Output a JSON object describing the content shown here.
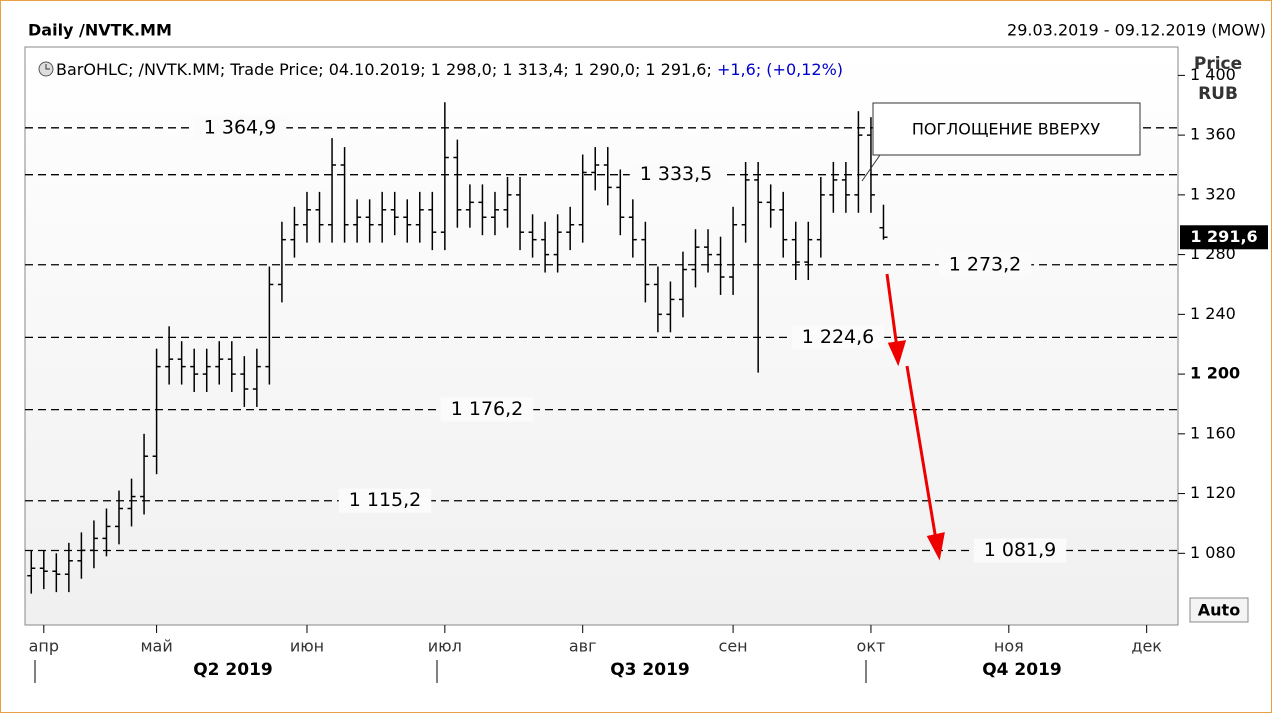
{
  "chart_data": {
    "type": "ohlc",
    "title": "Daily /NVTK.MM",
    "date_range": "29.03.2019 - 09.12.2019 (MOW)",
    "legend_text": "BarOHLC; /NVTK.MM; Trade Price; 04.10.2019; 1 298,0; 1 313,4; 1 290,0; 1 291,6;",
    "legend_change": "+1,6; (+0,12%)",
    "axis_title": [
      "Price",
      "RUB"
    ],
    "auto_button": "Auto",
    "annotation": "ПОГЛОЩЕНИЕ ВВЕРХУ",
    "last_value_label": "1 291,6",
    "color": "#000000",
    "categories": [
      null,
      "апр",
      null,
      null,
      null,
      null,
      null,
      null,
      null,
      null,
      "май",
      null,
      null,
      null,
      null,
      null,
      null,
      null,
      null,
      null,
      null,
      null,
      "июн",
      null,
      null,
      null,
      null,
      null,
      null,
      null,
      null,
      null,
      null,
      "июл",
      null,
      null,
      null,
      null,
      null,
      null,
      null,
      null,
      null,
      null,
      "авг",
      null,
      null,
      null,
      null,
      null,
      null,
      null,
      null,
      null,
      null,
      null,
      "сен",
      null,
      null,
      null,
      null,
      null,
      null,
      null,
      null,
      null,
      null,
      "окт",
      null,
      null,
      null,
      null,
      null,
      null,
      null,
      null,
      null,
      null,
      "ноя",
      null,
      null,
      null,
      null,
      null,
      null,
      null,
      null,
      null,
      null,
      "дек",
      null,
      null
    ],
    "open": [
      1065,
      1070,
      1068,
      1066,
      1075,
      1082,
      1090,
      1098,
      1110,
      1118,
      1145,
      1205,
      1210,
      1205,
      1200,
      1205,
      1210,
      1200,
      1190,
      1205,
      1260,
      1290,
      1300,
      1310,
      1300,
      1340,
      1300,
      1305,
      1300,
      1310,
      1305,
      1300,
      1310,
      1295,
      1345,
      1310,
      1315,
      1305,
      1310,
      1320,
      1295,
      1290,
      1280,
      1295,
      1300,
      1335,
      1340,
      1325,
      1305,
      1290,
      1260,
      1240,
      1250,
      1270,
      1285,
      1280,
      1265,
      1300,
      1330,
      1315,
      1310,
      1290,
      1275,
      1290,
      1320,
      1330,
      1320,
      1360,
      1298,
      null,
      null,
      null,
      null,
      null,
      null,
      null,
      null,
      null,
      null,
      null,
      null,
      null,
      null,
      null,
      null,
      null,
      null,
      null,
      null,
      null,
      null,
      null
    ],
    "high": [
      1082,
      1082,
      1080,
      1087,
      1094,
      1102,
      1110,
      1122,
      1130,
      1160,
      1217,
      1232,
      1222,
      1217,
      1217,
      1222,
      1222,
      1212,
      1217,
      1272,
      1302,
      1312,
      1322,
      1322,
      1358,
      1352,
      1317,
      1317,
      1322,
      1322,
      1317,
      1322,
      1322,
      1382,
      1357,
      1327,
      1327,
      1322,
      1332,
      1332,
      1307,
      1302,
      1307,
      1312,
      1347,
      1352,
      1352,
      1337,
      1317,
      1302,
      1272,
      1262,
      1282,
      1297,
      1297,
      1292,
      1312,
      1342,
      1342,
      1327,
      1322,
      1302,
      1302,
      1332,
      1342,
      1342,
      1376,
      1372,
      1313.4,
      null,
      null,
      null,
      null,
      null,
      null,
      null,
      null,
      null,
      null,
      null,
      null,
      null,
      null,
      null,
      null,
      null,
      null,
      null,
      null,
      null,
      null,
      null
    ],
    "low": [
      1053,
      1056,
      1054,
      1054,
      1063,
      1070,
      1078,
      1086,
      1098,
      1106,
      1133,
      1193,
      1193,
      1188,
      1188,
      1193,
      1188,
      1178,
      1178,
      1193,
      1248,
      1278,
      1288,
      1288,
      1288,
      1288,
      1288,
      1288,
      1288,
      1293,
      1288,
      1288,
      1283,
      1283,
      1298,
      1298,
      1293,
      1293,
      1298,
      1283,
      1278,
      1268,
      1268,
      1283,
      1288,
      1323,
      1313,
      1293,
      1278,
      1248,
      1228,
      1228,
      1238,
      1258,
      1268,
      1253,
      1253,
      1288,
      1201,
      1298,
      1278,
      1263,
      1263,
      1278,
      1308,
      1308,
      1308,
      1308,
      1290,
      null,
      null,
      null,
      null,
      null,
      null,
      null,
      null,
      null,
      null,
      null,
      null,
      null,
      null,
      null,
      null,
      null,
      null,
      null,
      null,
      null,
      null,
      null
    ],
    "close": [
      1070,
      1068,
      1066,
      1075,
      1082,
      1090,
      1098,
      1110,
      1118,
      1145,
      1205,
      1210,
      1205,
      1200,
      1205,
      1210,
      1200,
      1190,
      1205,
      1260,
      1290,
      1300,
      1310,
      1300,
      1340,
      1300,
      1305,
      1300,
      1310,
      1305,
      1300,
      1310,
      1295,
      1345,
      1310,
      1315,
      1305,
      1310,
      1320,
      1295,
      1290,
      1280,
      1295,
      1300,
      1335,
      1340,
      1325,
      1305,
      1290,
      1260,
      1240,
      1250,
      1270,
      1285,
      1280,
      1265,
      1300,
      1330,
      1315,
      1310,
      1290,
      1275,
      1290,
      1320,
      1330,
      1320,
      1360,
      1320,
      1291.6,
      null,
      null,
      null,
      null,
      null,
      null,
      null,
      null,
      null,
      null,
      null,
      null,
      null,
      null,
      null,
      null,
      null,
      null,
      null,
      null,
      null,
      null,
      null
    ],
    "quarters": [
      "Q2 2019",
      "Q3 2019",
      "Q4 2019"
    ],
    "levels": [
      {
        "value": 1364.9,
        "label": "1 364,9"
      },
      {
        "value": 1333.5,
        "label": "1 333,5"
      },
      {
        "value": 1273.2,
        "label": "1 273,2"
      },
      {
        "value": 1224.6,
        "label": "1 224,6"
      },
      {
        "value": 1176.2,
        "label": "1 176,2"
      },
      {
        "value": 1115.2,
        "label": "1 115,2"
      },
      {
        "value": 1081.9,
        "label": "1 081,9"
      }
    ],
    "ylim": [
      1032,
      1419
    ],
    "yticks": [
      {
        "value": 1080,
        "label": "1 080"
      },
      {
        "value": 1120,
        "label": "1 120"
      },
      {
        "value": 1160,
        "label": "1 160"
      },
      {
        "value": 1200,
        "label": "1 200"
      },
      {
        "value": 1240,
        "label": "1 240"
      },
      {
        "value": 1280,
        "label": "1 280"
      },
      {
        "value": 1320,
        "label": "1 320"
      },
      {
        "value": 1360,
        "label": "1 360"
      },
      {
        "value": 1400,
        "label": "1 400"
      }
    ]
  }
}
